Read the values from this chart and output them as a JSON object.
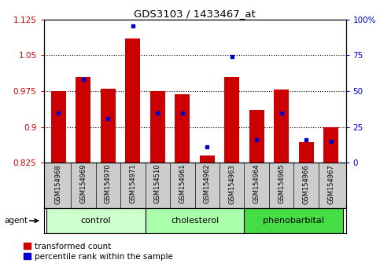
{
  "title": "GDS3103 / 1433467_at",
  "samples": [
    "GSM154968",
    "GSM154969",
    "GSM154970",
    "GSM154971",
    "GSM154510",
    "GSM154961",
    "GSM154962",
    "GSM154963",
    "GSM154964",
    "GSM154965",
    "GSM154966",
    "GSM154967"
  ],
  "red_values": [
    0.975,
    1.005,
    0.98,
    1.085,
    0.975,
    0.968,
    0.84,
    1.005,
    0.935,
    0.978,
    0.868,
    0.9
  ],
  "blue_values": [
    0.928,
    1.0,
    0.918,
    1.112,
    0.928,
    0.928,
    0.858,
    1.048,
    0.873,
    0.928,
    0.873,
    0.87
  ],
  "y_min": 0.825,
  "y_max": 1.125,
  "y_ticks_left": [
    0.825,
    0.9,
    0.975,
    1.05,
    1.125
  ],
  "y_ticks_right_vals": [
    0,
    25,
    50,
    75,
    100
  ],
  "y_ticks_right_pos": [
    0.825,
    0.9,
    0.975,
    1.05,
    1.125
  ],
  "groups": [
    {
      "label": "control",
      "start": 0,
      "end": 3,
      "color": "#ccffcc"
    },
    {
      "label": "cholesterol",
      "start": 4,
      "end": 7,
      "color": "#aaffaa"
    },
    {
      "label": "phenobarbital",
      "start": 8,
      "end": 11,
      "color": "#44dd44"
    }
  ],
  "bar_color": "#cc0000",
  "dot_color": "#0000cc",
  "bar_width": 0.6,
  "bar_color_red": "#cc0000",
  "dot_color_blue": "#0000cc",
  "grid_color": "black",
  "tick_area_color": "#cccccc",
  "agent_label": "agent"
}
